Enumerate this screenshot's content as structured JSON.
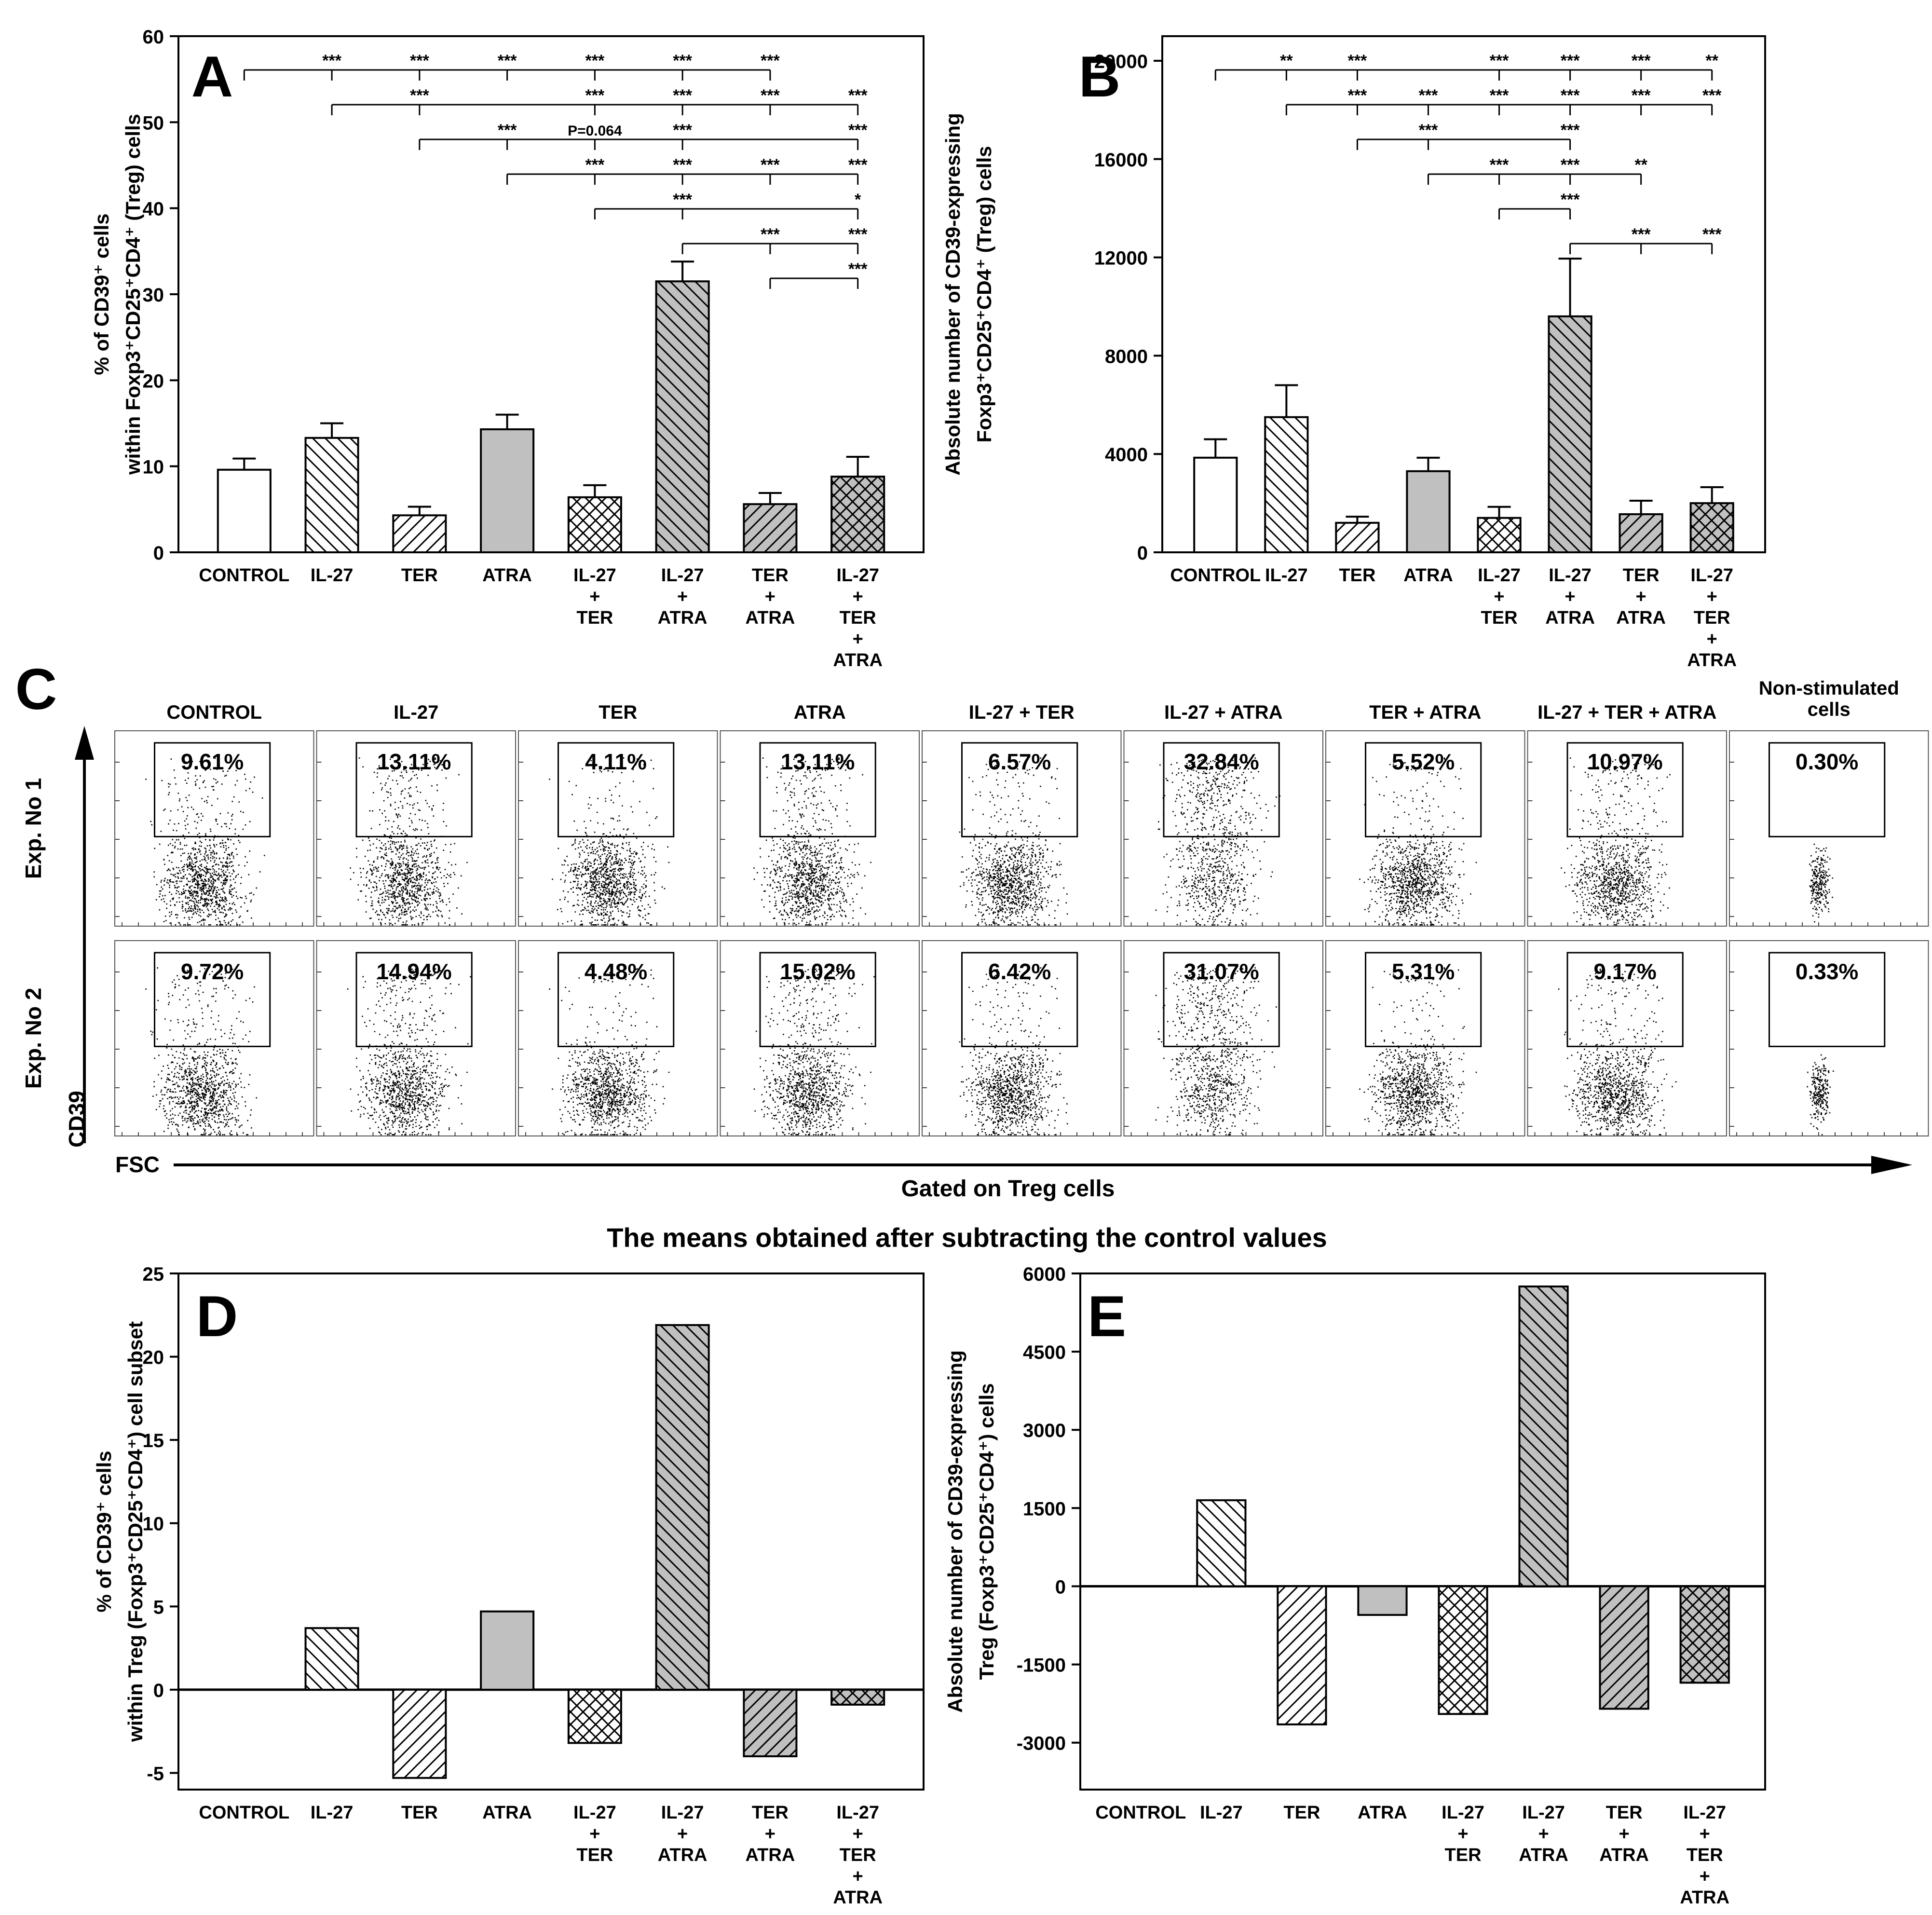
{
  "colors": {
    "axis": "#000000",
    "grey_fill": "#c0c0c0",
    "white_fill": "#ffffff"
  },
  "categories": [
    {
      "id": "control",
      "lines": [
        "CONTROL"
      ],
      "fill": "white",
      "pattern": "none"
    },
    {
      "id": "il27",
      "lines": [
        "IL-27"
      ],
      "fill": "white",
      "pattern": "back-diagonal"
    },
    {
      "id": "ter",
      "lines": [
        "TER"
      ],
      "fill": "white",
      "pattern": "forward-diagonal"
    },
    {
      "id": "atra",
      "lines": [
        "ATRA"
      ],
      "fill": "grey",
      "pattern": "none"
    },
    {
      "id": "il27-ter",
      "lines": [
        "IL-27",
        "+",
        "TER"
      ],
      "fill": "white",
      "pattern": "crosshatch"
    },
    {
      "id": "il27-atra",
      "lines": [
        "IL-27",
        "+",
        "ATRA"
      ],
      "fill": "grey",
      "pattern": "back-diagonal"
    },
    {
      "id": "ter-atra",
      "lines": [
        "TER",
        "+",
        "ATRA"
      ],
      "fill": "grey",
      "pattern": "forward-diagonal"
    },
    {
      "id": "il27-ter-atra",
      "lines": [
        "IL-27",
        "+",
        "TER",
        "+",
        "ATRA"
      ],
      "fill": "grey",
      "pattern": "crosshatch"
    }
  ],
  "chart_data": [
    {
      "panel": "A",
      "type": "bar",
      "ylabel_lines": [
        "% of CD39⁺ cells",
        "within Foxp3⁺CD25⁺CD4⁺ (Treg) cells"
      ],
      "ylim": [
        0,
        60
      ],
      "yticks": [
        0,
        10,
        20,
        30,
        40,
        50,
        60
      ],
      "values": [
        9.6,
        13.3,
        4.3,
        14.3,
        6.4,
        31.5,
        5.6,
        8.8
      ],
      "errors": [
        1.3,
        1.7,
        1.0,
        1.7,
        1.4,
        2.3,
        1.3,
        2.3
      ],
      "significance": [
        {
          "from": 0,
          "marks": [
            {
              "at": 1,
              "label": "***"
            },
            {
              "at": 2,
              "label": "***"
            },
            {
              "at": 3,
              "label": "***"
            },
            {
              "at": 4,
              "label": "***"
            },
            {
              "at": 5,
              "label": "***"
            },
            {
              "at": 6,
              "label": "***"
            }
          ]
        },
        {
          "from": 1,
          "marks": [
            {
              "at": 2,
              "label": "***"
            },
            {
              "at": 4,
              "label": "***"
            },
            {
              "at": 5,
              "label": "***"
            },
            {
              "at": 6,
              "label": "***"
            },
            {
              "at": 7,
              "label": "***"
            }
          ]
        },
        {
          "from": 2,
          "marks": [
            {
              "at": 3,
              "label": "***"
            },
            {
              "at": 4,
              "label": "P=0.064"
            },
            {
              "at": 5,
              "label": "***"
            },
            {
              "at": 7,
              "label": "***"
            }
          ]
        },
        {
          "from": 3,
          "marks": [
            {
              "at": 4,
              "label": "***"
            },
            {
              "at": 5,
              "label": "***"
            },
            {
              "at": 6,
              "label": "***"
            },
            {
              "at": 7,
              "label": "***"
            }
          ]
        },
        {
          "from": 4,
          "marks": [
            {
              "at": 5,
              "label": "***"
            },
            {
              "at": 7,
              "label": "*"
            }
          ]
        },
        {
          "from": 5,
          "marks": [
            {
              "at": 6,
              "label": "***"
            },
            {
              "at": 7,
              "label": "***"
            }
          ]
        },
        {
          "from": 6,
          "marks": [
            {
              "at": 7,
              "label": "***"
            }
          ]
        }
      ]
    },
    {
      "panel": "B",
      "type": "bar",
      "ylabel_lines": [
        "Absolute number of CD39-expressing",
        "Foxp3⁺CD25⁺CD4⁺ (Treg) cells"
      ],
      "ylim": [
        0,
        21000
      ],
      "yticks": [
        0,
        4000,
        8000,
        12000,
        16000,
        20000
      ],
      "values": [
        3850,
        5500,
        1200,
        3300,
        1400,
        9600,
        1550,
        2000
      ],
      "errors": [
        750,
        1300,
        250,
        550,
        450,
        2350,
        550,
        650
      ],
      "significance": [
        {
          "from": 0,
          "marks": [
            {
              "at": 1,
              "label": "**"
            },
            {
              "at": 2,
              "label": "***"
            },
            {
              "at": 4,
              "label": "***"
            },
            {
              "at": 5,
              "label": "***"
            },
            {
              "at": 6,
              "label": "***"
            },
            {
              "at": 7,
              "label": "**"
            }
          ]
        },
        {
          "from": 1,
          "marks": [
            {
              "at": 2,
              "label": "***"
            },
            {
              "at": 3,
              "label": "***"
            },
            {
              "at": 4,
              "label": "***"
            },
            {
              "at": 5,
              "label": "***"
            },
            {
              "at": 6,
              "label": "***"
            },
            {
              "at": 7,
              "label": "***"
            }
          ]
        },
        {
          "from": 2,
          "marks": [
            {
              "at": 3,
              "label": "***"
            },
            {
              "at": 5,
              "label": "***"
            }
          ]
        },
        {
          "from": 3,
          "marks": [
            {
              "at": 4,
              "label": "***"
            },
            {
              "at": 5,
              "label": "***"
            },
            {
              "at": 6,
              "label": "**"
            }
          ]
        },
        {
          "from": 4,
          "marks": [
            {
              "at": 5,
              "label": "***"
            }
          ]
        },
        {
          "from": 5,
          "marks": [
            {
              "at": 6,
              "label": "***"
            },
            {
              "at": 7,
              "label": "***"
            }
          ]
        }
      ]
    },
    {
      "panel": "D",
      "type": "bar",
      "ylabel_lines": [
        "% of CD39⁺ cells",
        "within Treg (Foxp3⁺CD25⁺CD4⁺) cell subset"
      ],
      "ylim": [
        -6,
        25
      ],
      "yticks": [
        -5,
        0,
        5,
        10,
        15,
        20,
        25
      ],
      "values": [
        0,
        3.7,
        -5.3,
        4.7,
        -3.2,
        21.9,
        -4.0,
        -0.9
      ]
    },
    {
      "panel": "E",
      "type": "bar",
      "ylabel_lines": [
        "Absolute number of CD39-expressing",
        "Treg (Foxp3⁺CD25⁺CD4⁺) cells"
      ],
      "ylim": [
        -3900,
        6000
      ],
      "yticks": [
        -3000,
        -1500,
        0,
        1500,
        3000,
        4500,
        6000
      ],
      "values": [
        0,
        1650,
        -2650,
        -550,
        -2450,
        5750,
        -2350,
        -1850
      ]
    },
    {
      "panel": "C",
      "type": "scatter",
      "description": "Flow cytometry dot plots, CD39 vs FSC, gated on Treg cells",
      "column_titles": [
        [
          "CONTROL"
        ],
        [
          "IL-27"
        ],
        [
          "TER"
        ],
        [
          "ATRA"
        ],
        [
          "IL-27 + TER"
        ],
        [
          "IL-27 + ATRA"
        ],
        [
          "TER + ATRA"
        ],
        [
          "IL-27 + TER + ATRA"
        ],
        [
          "Non-stimulated",
          "cells"
        ]
      ],
      "row_labels": [
        "Exp. No 1",
        "Exp. No 2"
      ],
      "percentages": [
        [
          "9.61%",
          "13.11%",
          "4.11%",
          "13.11%",
          "6.57%",
          "32.84%",
          "5.52%",
          "10.97%",
          "0.30%"
        ],
        [
          "9.72%",
          "14.94%",
          "4.48%",
          "15.02%",
          "6.42%",
          "31.07%",
          "5.31%",
          "9.17%",
          "0.33%"
        ]
      ],
      "y_axis_label": "CD39",
      "x_axis_label": "FSC",
      "gate_caption": "Gated on Treg cells"
    }
  ],
  "section_title": "The means obtained after subtracting the control values"
}
